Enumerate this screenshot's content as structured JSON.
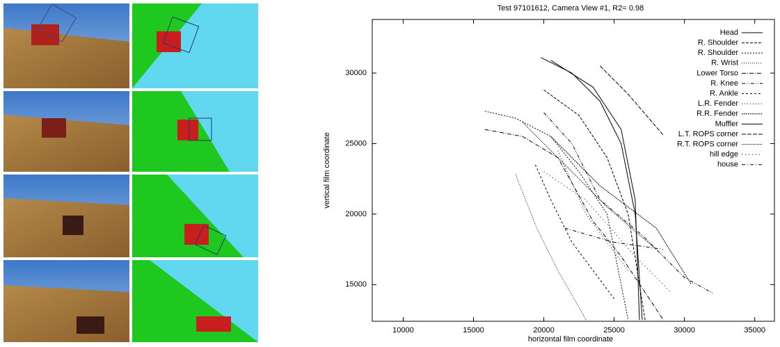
{
  "chart_data": {
    "type": "line",
    "title": "Test 97101612, Camera View #1, R2= 0.98",
    "x_label": "horizontal film coordinate",
    "y_label": "vertical film coordinate",
    "xlim": [
      7800,
      36400
    ],
    "xticks": [
      10000,
      15000,
      20000,
      25000,
      30000,
      35000
    ],
    "ylim": [
      12400,
      33800
    ],
    "yticks": [
      15000,
      20000,
      25000,
      30000
    ],
    "legend": "upper right",
    "series": [
      {
        "name": "Head",
        "color": "#000000",
        "dash": "none",
        "x": [
          19800,
          22000,
          24000,
          25500,
          26500,
          27000
        ],
        "values": [
          31100,
          30000,
          28000,
          25000,
          20000,
          12500
        ]
      },
      {
        "name": "R. Shoulder",
        "color": "#000000",
        "dash": "4 2",
        "x": [
          20000,
          22500,
          24500,
          26000,
          27200
        ],
        "values": [
          28800,
          27000,
          24000,
          20000,
          12500
        ]
      },
      {
        "name": "R. Shoulder",
        "color": "#000000",
        "dash": "2 2",
        "x": [
          15800,
          18000,
          20500,
          22500,
          24500,
          26000
        ],
        "values": [
          27300,
          26800,
          25500,
          23000,
          20000,
          12500
        ]
      },
      {
        "name": "R. Wrist",
        "color": "#000000",
        "dash": "1 2",
        "x": [
          18000,
          19500,
          21000,
          23000
        ],
        "values": [
          22800,
          19000,
          16000,
          12500
        ]
      },
      {
        "name": "Lower Torso",
        "color": "#000000",
        "dash": "6 2 1 2",
        "x": [
          15800,
          18500,
          21000,
          23500,
          25500,
          28500
        ],
        "values": [
          26000,
          25500,
          24000,
          19500,
          17000,
          12500
        ]
      },
      {
        "name": "R. Knee",
        "color": "#000000",
        "dash": "5 2 1 2 1 2",
        "x": [
          20000,
          22000,
          24000,
          27000,
          30000,
          32000
        ],
        "values": [
          27200,
          25000,
          21000,
          18500,
          15500,
          14400
        ]
      },
      {
        "name": "R. Ankle",
        "color": "#000000",
        "dash": "3 3",
        "x": [
          19400,
          20500,
          22000,
          25000
        ],
        "values": [
          23500,
          21000,
          18000,
          14000
        ]
      },
      {
        "name": "L.R. Fender",
        "color": "#000000",
        "dash": "1 3",
        "x": [
          21000,
          23000,
          26000
        ],
        "values": [
          24500,
          20000,
          16000
        ]
      },
      {
        "name": "R.R. Fender",
        "color": "#000000",
        "dash": "2 1",
        "x": [
          20500,
          24000,
          28000,
          30500
        ],
        "values": [
          25500,
          22000,
          19000,
          15000
        ]
      },
      {
        "name": "Muffler",
        "color": "#000000",
        "dash": "none",
        "x": [
          20500,
          23500,
          25500,
          26500,
          26800
        ],
        "values": [
          30900,
          29000,
          26000,
          21000,
          12500
        ]
      },
      {
        "name": "L.T. ROPS corner",
        "color": "#000000",
        "dash": "6 2",
        "x": [
          24000,
          26000,
          28500
        ],
        "values": [
          30500,
          28500,
          25600
        ]
      },
      {
        "name": "R.T. ROPS corner",
        "color": "#000000",
        "dash": "1 1",
        "x": [
          18500,
          21000,
          24500,
          28000
        ],
        "values": [
          26500,
          24000,
          20500,
          17500
        ]
      },
      {
        "name": "hill edge",
        "color": "#000000",
        "dash": "1 4",
        "x": [
          20000,
          23000,
          26500,
          29000
        ],
        "values": [
          23000,
          21000,
          17000,
          14500
        ]
      },
      {
        "name": "house",
        "color": "#000000",
        "dash": "5 3 1 3",
        "x": [
          21500,
          25000,
          28500
        ],
        "values": [
          19000,
          18000,
          17500
        ]
      }
    ]
  }
}
